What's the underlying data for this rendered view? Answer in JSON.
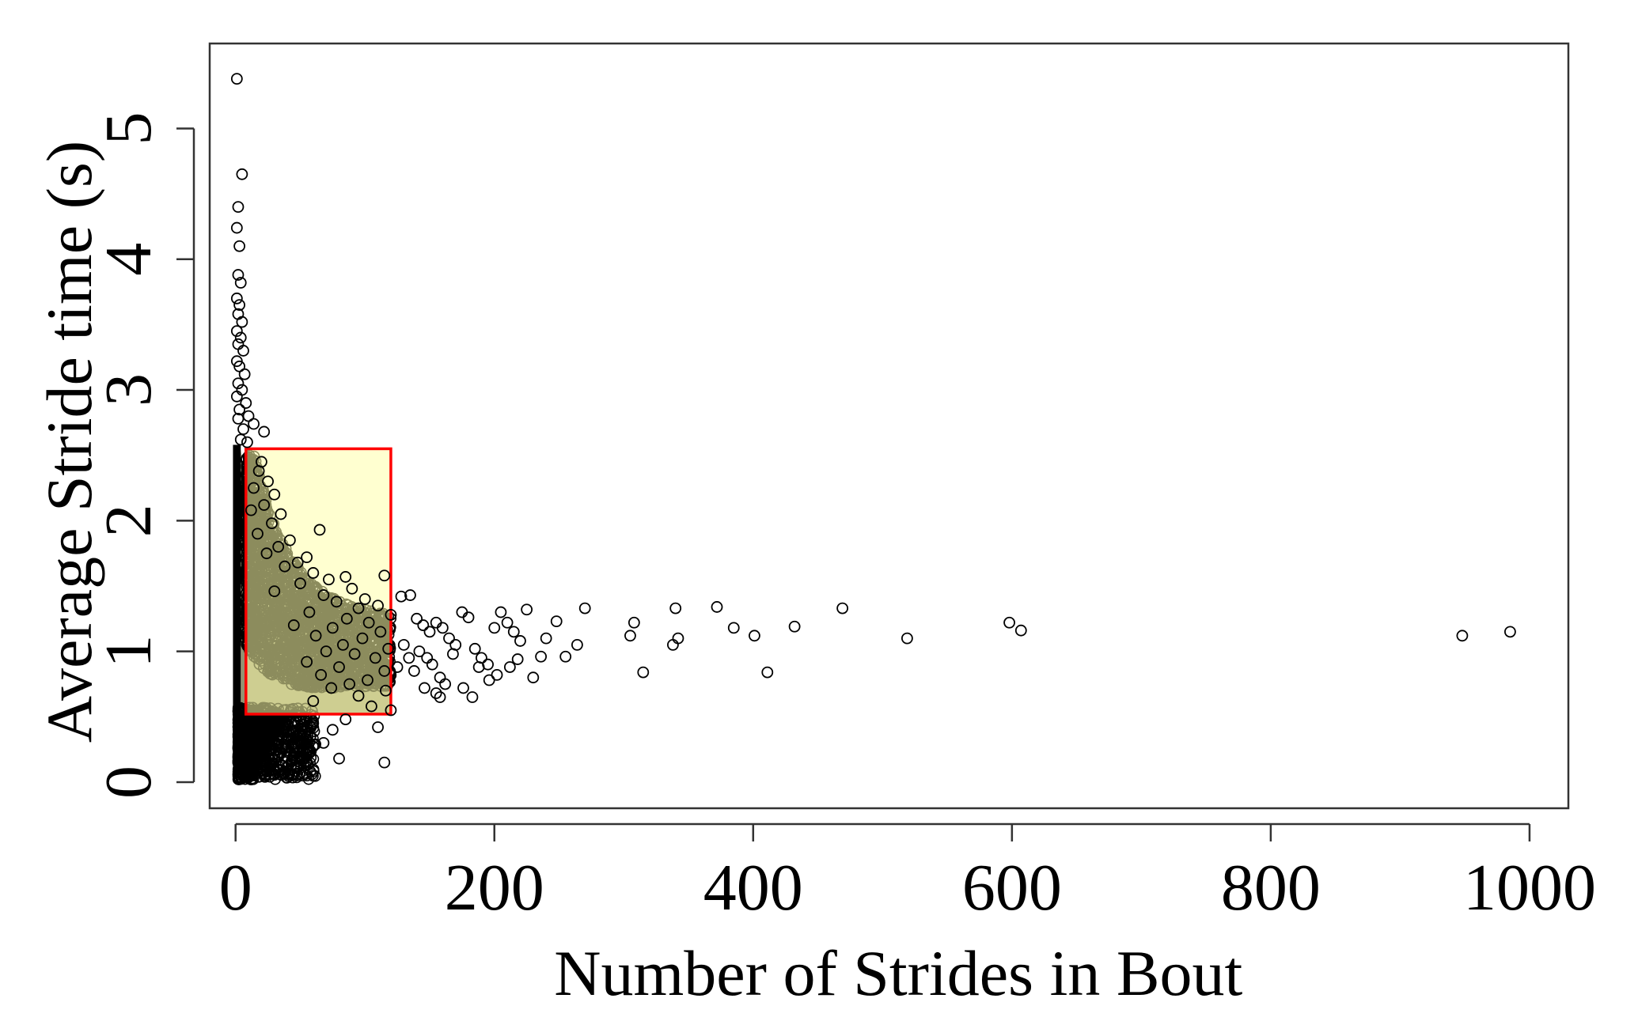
{
  "chart_data": {
    "type": "scatter",
    "title": "",
    "xlabel": "Number of Strides in Bout",
    "ylabel": "Average Stride time (s)",
    "xlim": [
      -20,
      1030
    ],
    "ylim": [
      -0.2,
      5.65
    ],
    "xticks": [
      0,
      200,
      400,
      600,
      800,
      1000
    ],
    "xtick_labels": [
      "0",
      "200",
      "400",
      "600",
      "800",
      "1000"
    ],
    "yticks": [
      0,
      1,
      2,
      3,
      4,
      5
    ],
    "ytick_labels": [
      "0",
      "1",
      "2",
      "3",
      "4",
      "5"
    ],
    "grid": false,
    "legend": "none",
    "marker": "open-circle",
    "marker_color": "#000000",
    "highlight_region": {
      "x": [
        8,
        120
      ],
      "y": [
        0.52,
        2.55
      ],
      "fill": "#ffffaa",
      "stroke": "#ff0000"
    },
    "points": [
      [
        1,
        5.38
      ],
      [
        5,
        4.65
      ],
      [
        2,
        4.4
      ],
      [
        1,
        4.24
      ],
      [
        3,
        4.1
      ],
      [
        2,
        3.88
      ],
      [
        4,
        3.82
      ],
      [
        1,
        3.7
      ],
      [
        3,
        3.65
      ],
      [
        2,
        3.58
      ],
      [
        5,
        3.52
      ],
      [
        1,
        3.45
      ],
      [
        4,
        3.4
      ],
      [
        2,
        3.35
      ],
      [
        6,
        3.3
      ],
      [
        1,
        3.22
      ],
      [
        3,
        3.18
      ],
      [
        7,
        3.12
      ],
      [
        2,
        3.05
      ],
      [
        5,
        3.0
      ],
      [
        1,
        2.95
      ],
      [
        8,
        2.9
      ],
      [
        3,
        2.85
      ],
      [
        10,
        2.8
      ],
      [
        2,
        2.78
      ],
      [
        14,
        2.74
      ],
      [
        6,
        2.7
      ],
      [
        22,
        2.68
      ],
      [
        4,
        2.62
      ],
      [
        9,
        2.6
      ],
      [
        20,
        2.45
      ],
      [
        18,
        2.38
      ],
      [
        25,
        2.3
      ],
      [
        14,
        2.25
      ],
      [
        30,
        2.2
      ],
      [
        22,
        2.12
      ],
      [
        12,
        2.08
      ],
      [
        35,
        2.05
      ],
      [
        28,
        1.98
      ],
      [
        65,
        1.93
      ],
      [
        17,
        1.9
      ],
      [
        42,
        1.85
      ],
      [
        33,
        1.8
      ],
      [
        24,
        1.75
      ],
      [
        55,
        1.72
      ],
      [
        48,
        1.68
      ],
      [
        38,
        1.65
      ],
      [
        60,
        1.6
      ],
      [
        85,
        1.57
      ],
      [
        115,
        1.58
      ],
      [
        72,
        1.55
      ],
      [
        50,
        1.52
      ],
      [
        90,
        1.48
      ],
      [
        30,
        1.46
      ],
      [
        68,
        1.43
      ],
      [
        100,
        1.4
      ],
      [
        78,
        1.38
      ],
      [
        110,
        1.35
      ],
      [
        95,
        1.33
      ],
      [
        57,
        1.3
      ],
      [
        120,
        1.28
      ],
      [
        86,
        1.25
      ],
      [
        103,
        1.22
      ],
      [
        45,
        1.2
      ],
      [
        75,
        1.18
      ],
      [
        112,
        1.15
      ],
      [
        62,
        1.12
      ],
      [
        98,
        1.1
      ],
      [
        83,
        1.05
      ],
      [
        118,
        1.02
      ],
      [
        70,
        1.0
      ],
      [
        92,
        0.98
      ],
      [
        108,
        0.95
      ],
      [
        55,
        0.92
      ],
      [
        80,
        0.88
      ],
      [
        115,
        0.85
      ],
      [
        66,
        0.82
      ],
      [
        102,
        0.78
      ],
      [
        88,
        0.75
      ],
      [
        74,
        0.72
      ],
      [
        116,
        0.7
      ],
      [
        95,
        0.66
      ],
      [
        60,
        0.62
      ],
      [
        105,
        0.58
      ],
      [
        120,
        0.55
      ],
      [
        85,
        0.48
      ],
      [
        60,
        0.45
      ],
      [
        75,
        0.4
      ],
      [
        52,
        0.35
      ],
      [
        68,
        0.3
      ],
      [
        45,
        0.26
      ],
      [
        80,
        0.18
      ],
      [
        115,
        0.15
      ],
      [
        35,
        0.22
      ],
      [
        28,
        0.18
      ],
      [
        40,
        0.12
      ],
      [
        22,
        0.1
      ],
      [
        30,
        0.06
      ],
      [
        18,
        0.04
      ],
      [
        12,
        0.02
      ],
      [
        110,
        0.42
      ],
      [
        128,
        1.42
      ],
      [
        135,
        1.43
      ],
      [
        140,
        1.25
      ],
      [
        145,
        1.2
      ],
      [
        150,
        1.15
      ],
      [
        155,
        1.22
      ],
      [
        160,
        1.18
      ],
      [
        165,
        1.1
      ],
      [
        130,
        1.05
      ],
      [
        142,
        1.0
      ],
      [
        148,
        0.95
      ],
      [
        152,
        0.9
      ],
      [
        138,
        0.85
      ],
      [
        158,
        0.8
      ],
      [
        162,
        0.75
      ],
      [
        146,
        0.72
      ],
      [
        155,
        0.68
      ],
      [
        134,
        0.95
      ],
      [
        125,
        0.88
      ],
      [
        170,
        1.05
      ],
      [
        168,
        0.98
      ],
      [
        175,
        1.3
      ],
      [
        180,
        1.26
      ],
      [
        185,
        1.02
      ],
      [
        190,
        0.95
      ],
      [
        195,
        0.9
      ],
      [
        200,
        1.18
      ],
      [
        205,
        1.3
      ],
      [
        210,
        1.22
      ],
      [
        215,
        1.15
      ],
      [
        220,
        1.08
      ],
      [
        212,
        0.88
      ],
      [
        225,
        1.32
      ],
      [
        230,
        0.8
      ],
      [
        236,
        0.96
      ],
      [
        240,
        1.1
      ],
      [
        248,
        1.23
      ],
      [
        255,
        0.96
      ],
      [
        264,
        1.05
      ],
      [
        270,
        1.33
      ],
      [
        196,
        0.78
      ],
      [
        183,
        0.65
      ],
      [
        176,
        0.72
      ],
      [
        158,
        0.65
      ],
      [
        188,
        0.88
      ],
      [
        202,
        0.82
      ],
      [
        218,
        0.94
      ],
      [
        305,
        1.12
      ],
      [
        308,
        1.22
      ],
      [
        315,
        0.84
      ],
      [
        340,
        1.33
      ],
      [
        342,
        1.1
      ],
      [
        338,
        1.05
      ],
      [
        372,
        1.34
      ],
      [
        385,
        1.18
      ],
      [
        401,
        1.12
      ],
      [
        411,
        0.84
      ],
      [
        432,
        1.19
      ],
      [
        469,
        1.33
      ],
      [
        519,
        1.1
      ],
      [
        598,
        1.22
      ],
      [
        607,
        1.16
      ],
      [
        948,
        1.12
      ],
      [
        985,
        1.15
      ]
    ]
  }
}
